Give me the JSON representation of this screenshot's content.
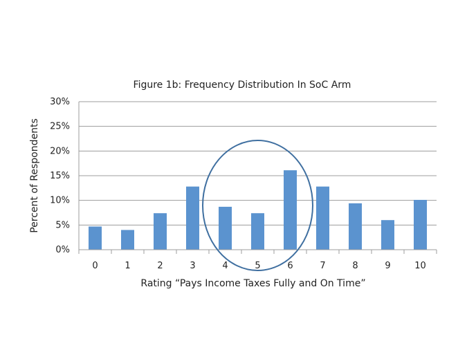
{
  "chart_data": {
    "type": "bar",
    "title": "Figure 1b: Frequency Distribution In SoC Arm",
    "xlabel": "Rating “Pays Income Taxes Fully and On Time”",
    "ylabel": "Percent of Respondents",
    "categories": [
      "0",
      "1",
      "2",
      "3",
      "4",
      "5",
      "6",
      "7",
      "8",
      "9",
      "10"
    ],
    "values": [
      4.7,
      4.0,
      7.4,
      12.8,
      8.7,
      7.4,
      16.1,
      12.8,
      9.4,
      6.0,
      10.1
    ],
    "ylim": [
      0,
      30
    ],
    "yticks": [
      0,
      5,
      10,
      15,
      20,
      25,
      30
    ],
    "ytick_labels": [
      "0%",
      "5%",
      "10%",
      "15%",
      "20%",
      "25%",
      "30%"
    ],
    "grid": true,
    "bar_color": "#5b93cf",
    "annotation": {
      "shape": "ellipse",
      "encloses": [
        "4",
        "5",
        "6"
      ],
      "color": "#3f6fa0"
    }
  }
}
